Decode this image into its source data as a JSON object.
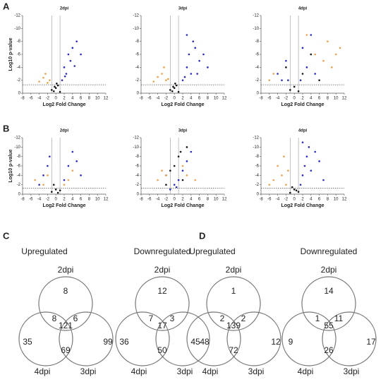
{
  "panels": [
    {
      "label": "A",
      "charts": [
        {
          "type": "scatter",
          "title": "2dpi",
          "x_label": "Log2 Fold Change",
          "y_label": "Log10 p-value",
          "xlim": [
            -8,
            12
          ],
          "xticks": [
            -8,
            -6,
            -4,
            -2,
            0,
            2,
            4,
            6,
            8,
            10,
            12
          ],
          "ylim": [
            0,
            -12
          ],
          "yticks": [
            -12,
            -10,
            -8,
            -6,
            -4,
            -2,
            0
          ],
          "hlines": [
            -1.3
          ],
          "vlines": [
            -1,
            1
          ],
          "series": [
            {
              "color": "#2424d8",
              "x": [
                1.5,
                2,
                2.5,
                3,
                3.5,
                4,
                5,
                6,
                2.2,
                4.5
              ],
              "values": [
                -2,
                -4,
                -3,
                -6,
                -5,
                -7,
                -8,
                -6,
                -2.6,
                -4.2
              ]
            },
            {
              "color": "#f0a040",
              "x": [
                -1.5,
                -2,
                -3,
                -2.5,
                -4
              ],
              "values": [
                -2,
                -1.6,
                -2.4,
                -3,
                -1.8
              ]
            },
            {
              "color": "#111111",
              "x": [
                -0.5,
                0,
                0.5,
                -1,
                1,
                0.2,
                -0.3
              ],
              "values": [
                -0.3,
                -0.8,
                -1.2,
                -0.5,
                -0.2,
                -1.5,
                -1
              ]
            }
          ]
        },
        {
          "type": "scatter",
          "title": "3dpi",
          "x_label": "Log2 Fold Change",
          "xlim": [
            -8,
            12
          ],
          "xticks": [
            -8,
            -6,
            -4,
            -2,
            0,
            2,
            4,
            6,
            8,
            10,
            12
          ],
          "ylim": [
            0,
            -12
          ],
          "yticks": [
            -12,
            -10,
            -8,
            -6,
            -4,
            -2,
            0
          ],
          "hlines": [
            -1.3
          ],
          "vlines": [
            -1,
            1
          ],
          "series": [
            {
              "color": "#2424d8",
              "x": [
                2,
                3,
                3.5,
                4,
                5,
                6,
                2.5,
                4.5,
                7,
                3,
                5.5,
                8
              ],
              "values": [
                -2,
                -4,
                -6,
                -3,
                -7,
                -5,
                -2.5,
                -8,
                -6,
                -9,
                -3,
                -4
              ]
            },
            {
              "color": "#f0a040",
              "x": [
                -2,
                -3,
                -4,
                -2.5,
                -5,
                -1.5
              ],
              "values": [
                -2,
                -3,
                -2.5,
                -4,
                -1.8,
                -2.2
              ]
            },
            {
              "color": "#111111",
              "x": [
                -0.5,
                0,
                0.5,
                -1,
                1,
                0.2,
                -0.3
              ],
              "values": [
                -0.3,
                -0.8,
                -1.2,
                -0.5,
                -0.2,
                -1.5,
                -1
              ]
            }
          ]
        },
        {
          "type": "scatter",
          "title": "4dpi",
          "x_label": "Log2 Fold Change",
          "xlim": [
            -8,
            12
          ],
          "xticks": [
            -8,
            -6,
            -4,
            -2,
            0,
            2,
            4,
            6,
            8,
            10,
            12
          ],
          "ylim": [
            0,
            -12
          ],
          "yticks": [
            -12,
            -10,
            -8,
            -6,
            -4,
            -2,
            0
          ],
          "hlines": [
            -1.3
          ],
          "vlines": [
            -1,
            1
          ],
          "series": [
            {
              "color": "#2424d8",
              "x": [
                -4,
                -2,
                -1.5,
                2,
                3,
                4,
                5,
                1.5,
                -3
              ],
              "values": [
                -3,
                -5,
                -2,
                -7,
                -4,
                -9,
                -3,
                -2,
                -2
              ]
            },
            {
              "color": "#f0a040",
              "x": [
                -6,
                -5,
                5,
                7,
                8,
                9,
                10,
                11,
                3
              ],
              "values": [
                -2,
                -3,
                -6,
                -5,
                -8,
                -4,
                -6,
                -7,
                -9
              ]
            },
            {
              "color": "#111111",
              "x": [
                -1,
                0,
                1,
                2,
                -2,
                4,
                6
              ],
              "values": [
                -0.5,
                -1,
                -0.3,
                -3,
                -4,
                -6,
                -2
              ]
            }
          ]
        }
      ]
    },
    {
      "label": "B",
      "charts": [
        {
          "type": "scatter",
          "title": "2dpi",
          "x_label": "Log2 Fold Change",
          "y_label": "Log10 p-value",
          "xlim": [
            -8,
            12
          ],
          "xticks": [
            -8,
            -6,
            -4,
            -2,
            0,
            2,
            4,
            6,
            8,
            10,
            12
          ],
          "ylim": [
            0,
            -12
          ],
          "yticks": [
            -12,
            -10,
            -8,
            -6,
            -4,
            -2,
            0
          ],
          "hlines": [
            -1.3
          ],
          "vlines": [
            -1,
            1
          ],
          "series": [
            {
              "color": "#2424d8",
              "x": [
                -4,
                -2,
                -1.5,
                2,
                3,
                4,
                5,
                6,
                -3
              ],
              "values": [
                -2,
                -6,
                -8,
                -3,
                -6,
                -9,
                -7,
                -4,
                -4
              ]
            },
            {
              "color": "#f0a040",
              "x": [
                -5,
                -3,
                -2,
                2,
                3,
                4
              ],
              "values": [
                -3,
                -2,
                -4,
                -2,
                -3,
                -5
              ]
            },
            {
              "color": "#111111",
              "x": [
                -1,
                0,
                1,
                -0.5,
                0.5
              ],
              "values": [
                -0.5,
                -1,
                -0.8,
                -2,
                -0.3
              ]
            }
          ]
        },
        {
          "type": "scatter",
          "title": "3dpi",
          "x_label": "Log2 Fold Change",
          "xlim": [
            -8,
            12
          ],
          "xticks": [
            -8,
            -6,
            -4,
            -2,
            0,
            2,
            4,
            6,
            8,
            10,
            12
          ],
          "ylim": [
            0,
            -12
          ],
          "yticks": [
            -12,
            -10,
            -8,
            -6,
            -4,
            -2,
            0
          ],
          "hlines": [
            -1.3
          ],
          "vlines": [
            -1,
            1
          ],
          "series": [
            {
              "color": "#2424d8",
              "x": [
                -1,
                0,
                1,
                -2,
                2,
                0.5,
                3,
                4
              ],
              "values": [
                -1,
                -2,
                -3,
                -4,
                -5,
                -1.5,
                -7,
                -9
              ]
            },
            {
              "color": "#f0a040",
              "x": [
                -4,
                -3,
                -2,
                2,
                3,
                5
              ],
              "values": [
                -3,
                -5,
                -4,
                -6,
                -4,
                -3
              ]
            },
            {
              "color": "#111111",
              "x": [
                -1,
                0,
                1,
                2,
                3,
                -2,
                1.5
              ],
              "values": [
                -5,
                -6,
                -8,
                -3,
                -10,
                -2,
                -9
              ]
            }
          ]
        },
        {
          "type": "scatter",
          "title": "4dpi",
          "x_label": "Log2 Fold Change",
          "xlim": [
            -8,
            12
          ],
          "xticks": [
            -8,
            -6,
            -4,
            -2,
            0,
            2,
            4,
            6,
            8,
            10,
            12
          ],
          "ylim": [
            0,
            -12
          ],
          "yticks": [
            -12,
            -10,
            -8,
            -6,
            -4,
            -2,
            0
          ],
          "hlines": [
            -1.3
          ],
          "vlines": [
            -1,
            1
          ],
          "series": [
            {
              "color": "#2424d8",
              "x": [
                1.5,
                2,
                2.5,
                3,
                3.5,
                4,
                5,
                6,
                7,
                2
              ],
              "values": [
                -2,
                -4,
                -6,
                -8,
                -10,
                -5,
                -9,
                -7,
                -3,
                -11
              ]
            },
            {
              "color": "#f0a040",
              "x": [
                -2,
                -3,
                -4,
                -5,
                -6,
                -1.5,
                -2.5
              ],
              "values": [
                -2,
                -4,
                -6,
                -3,
                -2,
                -5,
                -8
              ]
            },
            {
              "color": "#111111",
              "x": [
                -1,
                0,
                1,
                -0.5,
                0.5
              ],
              "values": [
                -0.3,
                -1,
                -0.5,
                -1.5,
                -0.8
              ]
            }
          ]
        }
      ]
    }
  ],
  "venn_panels": [
    {
      "label": "C",
      "diagrams": [
        {
          "title": "Upregulated",
          "top": "2dpi",
          "left": "4dpi",
          "right": "3dpi",
          "counts": [
            8,
            8,
            121,
            6,
            35,
            69,
            99
          ]
        },
        {
          "title": "Downregulated",
          "top": "2dpi",
          "left": "4dpi",
          "right": "3dpi",
          "counts": [
            12,
            7,
            17,
            3,
            36,
            50,
            48
          ]
        }
      ]
    },
    {
      "label": "D",
      "diagrams": [
        {
          "title": "Upregulated",
          "top": "2dpi",
          "left": "4dpi",
          "right": "3dpi",
          "counts": [
            1,
            2,
            139,
            2,
            45,
            72,
            12
          ]
        },
        {
          "title": "Downregulated",
          "top": "2dpi",
          "left": "4dpi",
          "right": "3dpi",
          "counts": [
            14,
            1,
            55,
            11,
            9,
            26,
            17
          ]
        }
      ]
    }
  ]
}
